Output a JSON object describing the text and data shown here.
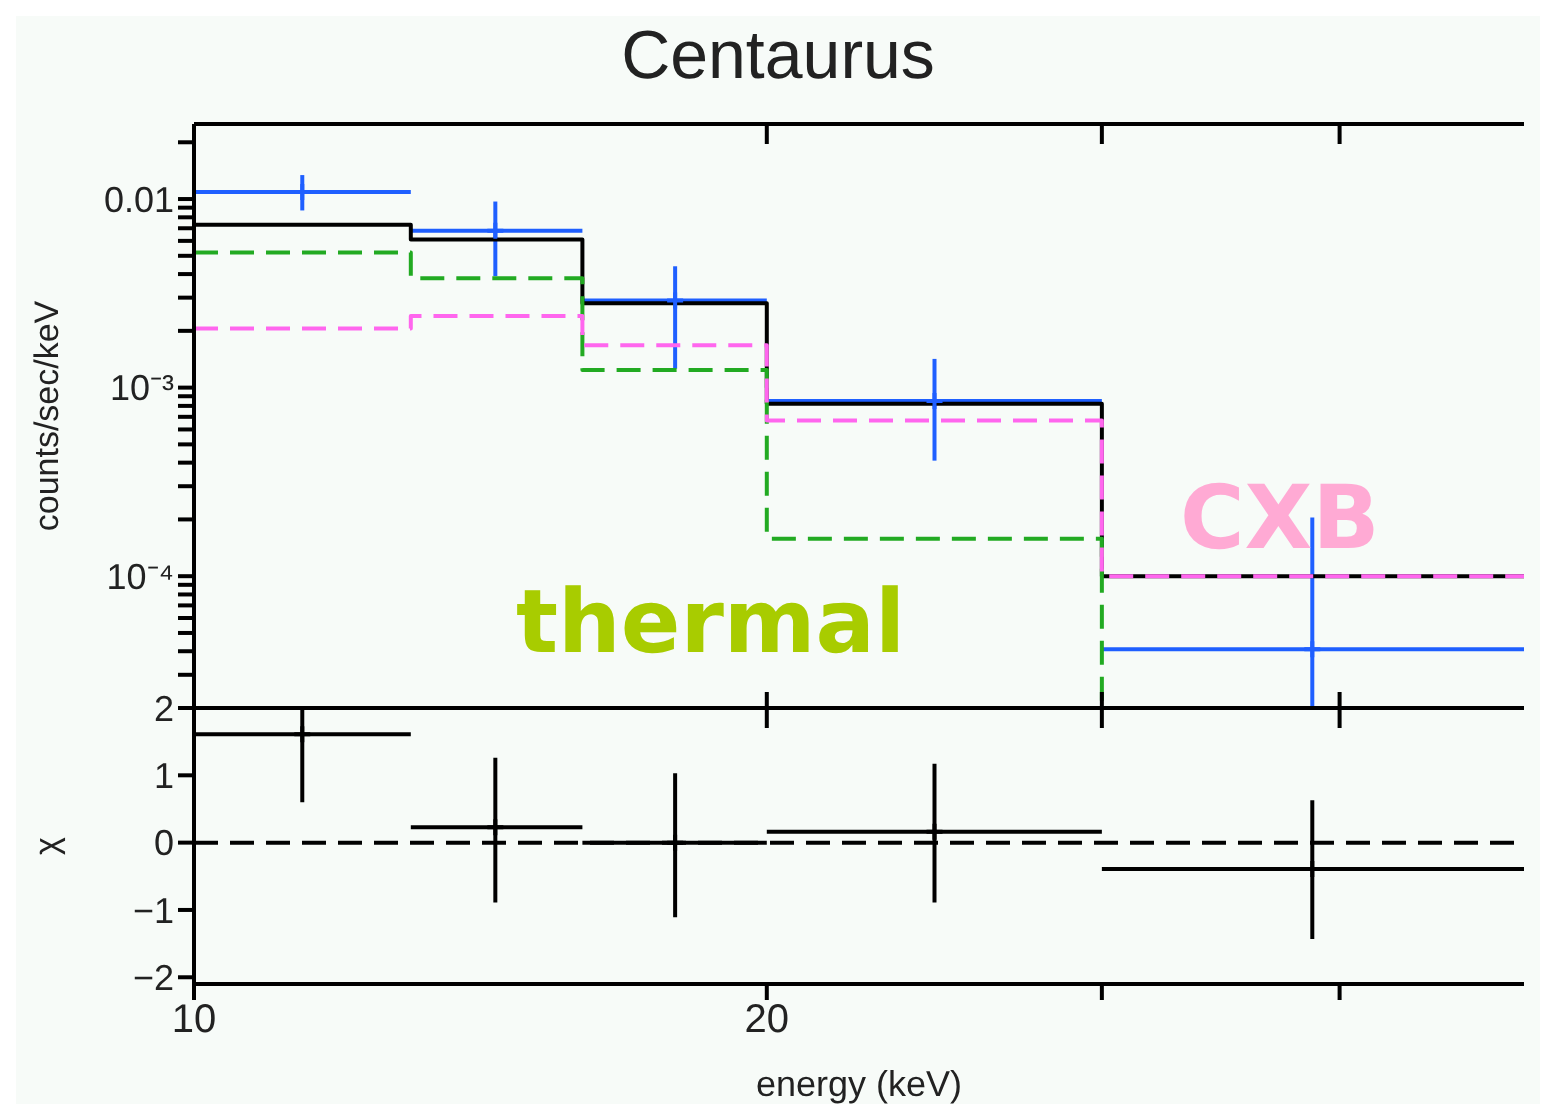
{
  "chart_data": [
    {
      "type": "histogram",
      "title": "Centaurus",
      "ylabel": "counts/sec/keV",
      "log": "xy",
      "xlim": [
        10,
        50
      ],
      "ylim": [
        2e-05,
        0.025
      ],
      "yticks": [
        {
          "value": 3e-05,
          "label": null
        },
        {
          "value": 4e-05,
          "label": null
        },
        {
          "value": 5e-05,
          "label": null
        },
        {
          "value": 6e-05,
          "label": null
        },
        {
          "value": 7e-05,
          "label": null
        },
        {
          "value": 8e-05,
          "label": null
        },
        {
          "value": 9e-05,
          "label": null
        },
        {
          "value": 0.0001,
          "label": "10⁻⁴"
        },
        {
          "value": 0.0002,
          "label": null
        },
        {
          "value": 0.0003,
          "label": null
        },
        {
          "value": 0.0004,
          "label": null
        },
        {
          "value": 0.0005,
          "label": null
        },
        {
          "value": 0.0006,
          "label": null
        },
        {
          "value": 0.0007,
          "label": null
        },
        {
          "value": 0.0008,
          "label": null
        },
        {
          "value": 0.0009,
          "label": null
        },
        {
          "value": 0.001,
          "label": "10⁻³"
        },
        {
          "value": 0.002,
          "label": null
        },
        {
          "value": 0.003,
          "label": null
        },
        {
          "value": 0.004,
          "label": null
        },
        {
          "value": 0.005,
          "label": null
        },
        {
          "value": 0.006,
          "label": null
        },
        {
          "value": 0.007,
          "label": null
        },
        {
          "value": 0.008,
          "label": null
        },
        {
          "value": 0.009,
          "label": null
        },
        0.01,
        {
          "value": 0.02,
          "label": null
        }
      ],
      "tick_labels": "y",
      "marker": "cross",
      "bins": [
        10,
        13,
        16,
        20,
        30,
        50
      ],
      "series": [
        {
          "type": "scatter",
          "color": "#1f5fff",
          "x": [
            11.4,
            14.4,
            17.9,
            24.5,
            38.7
          ],
          "values": [
            0.0109,
            0.0068,
            0.0029,
            0.00085,
            4.1e-05
          ],
          "errors": [
            [
              0.0087,
              0.0134
            ],
            [
              0.0039,
              0.0097
            ],
            [
              0.00126,
              0.0044
            ],
            [
              0.00041,
              0.00142
            ],
            [
              2.05e-05,
              0.000205
            ]
          ],
          "xerrors": [
            [
              10,
              13
            ],
            [
              13,
              16
            ],
            [
              16,
              20
            ],
            [
              20,
              30
            ],
            [
              30,
              50
            ]
          ]
        },
        {
          "color": "#000000",
          "line_style": "solid",
          "values": [
            0.0073,
            0.0061,
            0.0028,
            0.00082,
            0.0001
          ]
        },
        {
          "color": "#22aa22",
          "line_style": "dashed",
          "values": [
            0.0052,
            0.0038,
            0.00124,
            0.000158,
            2e-05
          ]
        },
        {
          "color": "#ff66ee",
          "line_style": "dashed",
          "values": [
            0.00206,
            0.0024,
            0.00168,
            0.00067,
            0.0001
          ]
        }
      ],
      "annotations": [
        "thermal",
        "CXB"
      ]
    },
    {
      "type": "scatter",
      "xlabel": "energy (keV)",
      "ylabel": "χ",
      "log": "x",
      "xlim": [
        10,
        50
      ],
      "xticks": [
        10,
        20,
        {
          "value": 30,
          "label": null
        },
        {
          "value": 40,
          "label": null
        }
      ],
      "ylim": [
        -2.1,
        2
      ],
      "yticks": [
        {
          "value": -2,
          "label": "−2"
        },
        {
          "value": -1,
          "label": "−1"
        },
        0,
        1,
        2
      ],
      "marker": "cross",
      "series": [
        {
          "color": "#000000",
          "x": [
            11.4,
            14.4,
            17.9,
            24.5,
            38.7
          ],
          "values": [
            1.61,
            0.23,
            0,
            0.16,
            -0.39
          ],
          "errors": [
            [
              0.6,
              2.0
            ],
            [
              -0.89,
              1.26
            ],
            [
              -1.11,
              1.03
            ],
            [
              -0.89,
              1.17
            ],
            [
              -1.43,
              0.63
            ]
          ],
          "xerrors": [
            [
              10,
              13
            ],
            [
              13,
              16
            ],
            [
              16,
              20
            ],
            [
              20,
              30
            ],
            [
              30,
              50
            ]
          ]
        }
      ],
      "ref_lines": [
        {
          "axis": "y",
          "value": 0,
          "color": "#000000",
          "line_style": "dashed"
        }
      ]
    }
  ]
}
